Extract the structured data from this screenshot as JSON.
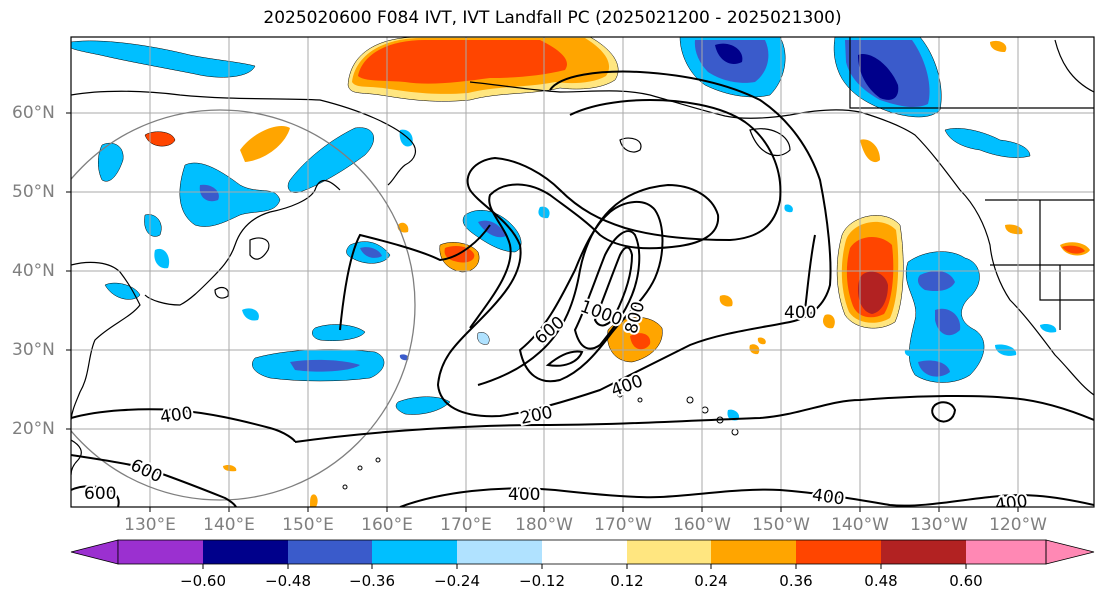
{
  "title": "2025020600 F084 IVT, IVT Landfall PC (2025021200 - 2025021300)",
  "lat_labels": [
    "60°N",
    "50°N",
    "40°N",
    "30°N",
    "20°N"
  ],
  "lon_labels": [
    "130°E",
    "140°E",
    "150°E",
    "160°E",
    "170°E",
    "180°W",
    "170°W",
    "160°W",
    "150°W",
    "140°W",
    "130°W",
    "120°W"
  ],
  "contour_labels": [
    "600",
    "1000",
    "800",
    "400",
    "200",
    "400",
    "400",
    "600",
    "600",
    "400",
    "400",
    "400"
  ],
  "colorbar": {
    "ticks": [
      "−0.60",
      "−0.48",
      "−0.36",
      "−0.24",
      "−0.12",
      "0.12",
      "0.24",
      "0.36",
      "0.48",
      "0.60"
    ],
    "colors": [
      "#9b30d0",
      "#00008b",
      "#3a5bcb",
      "#00bfff",
      "#b0e2ff",
      "#ffffff",
      "#ffe680",
      "#ffa500",
      "#ff4500",
      "#b22222",
      "#ff88b4"
    ]
  }
}
